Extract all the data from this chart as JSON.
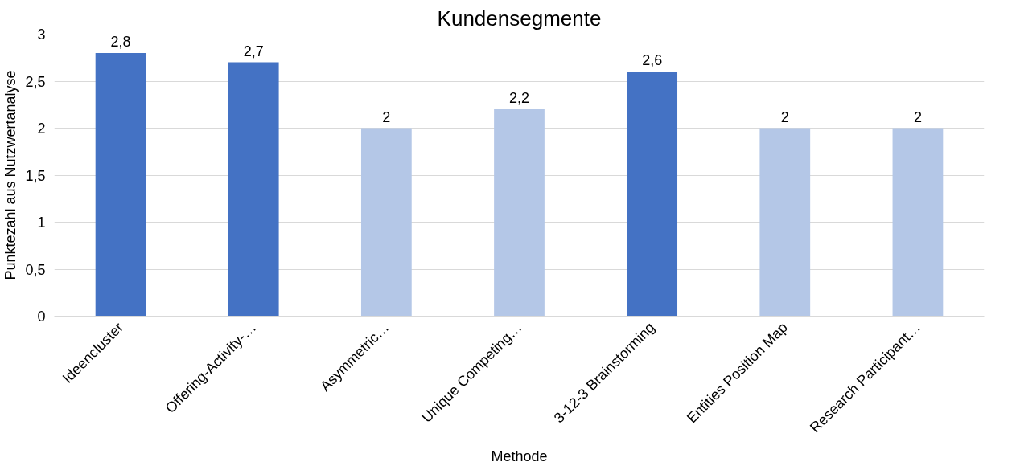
{
  "chart_data": {
    "type": "bar",
    "title": "Kundensegmente",
    "xlabel": "Methode",
    "ylabel": "Punktezahl aus Nutzwertanalyse",
    "categories": [
      "Ideencluster",
      "Offering-Activity-…",
      "Asymmetric…",
      "Unique Competing…",
      "3-12-3 Brainstorming",
      "Entities Position Map",
      "Research Participant…"
    ],
    "values": [
      2.8,
      2.7,
      2,
      2.2,
      2.6,
      2,
      2
    ],
    "colors": [
      "#4472c4",
      "#4472c4",
      "#b4c7e7",
      "#b4c7e7",
      "#4472c4",
      "#b4c7e7",
      "#b4c7e7"
    ],
    "value_labels": [
      "2,8",
      "2,7",
      "2",
      "2,2",
      "2,6",
      "2",
      "2"
    ],
    "ylim": [
      0,
      3
    ],
    "yticks": [
      0,
      {
        "value": 0.5,
        "label": "0,5"
      },
      1,
      {
        "value": 1.5,
        "label": "1,5"
      },
      2,
      {
        "value": 2.5,
        "label": "2,5"
      },
      3
    ],
    "grid": "y"
  }
}
